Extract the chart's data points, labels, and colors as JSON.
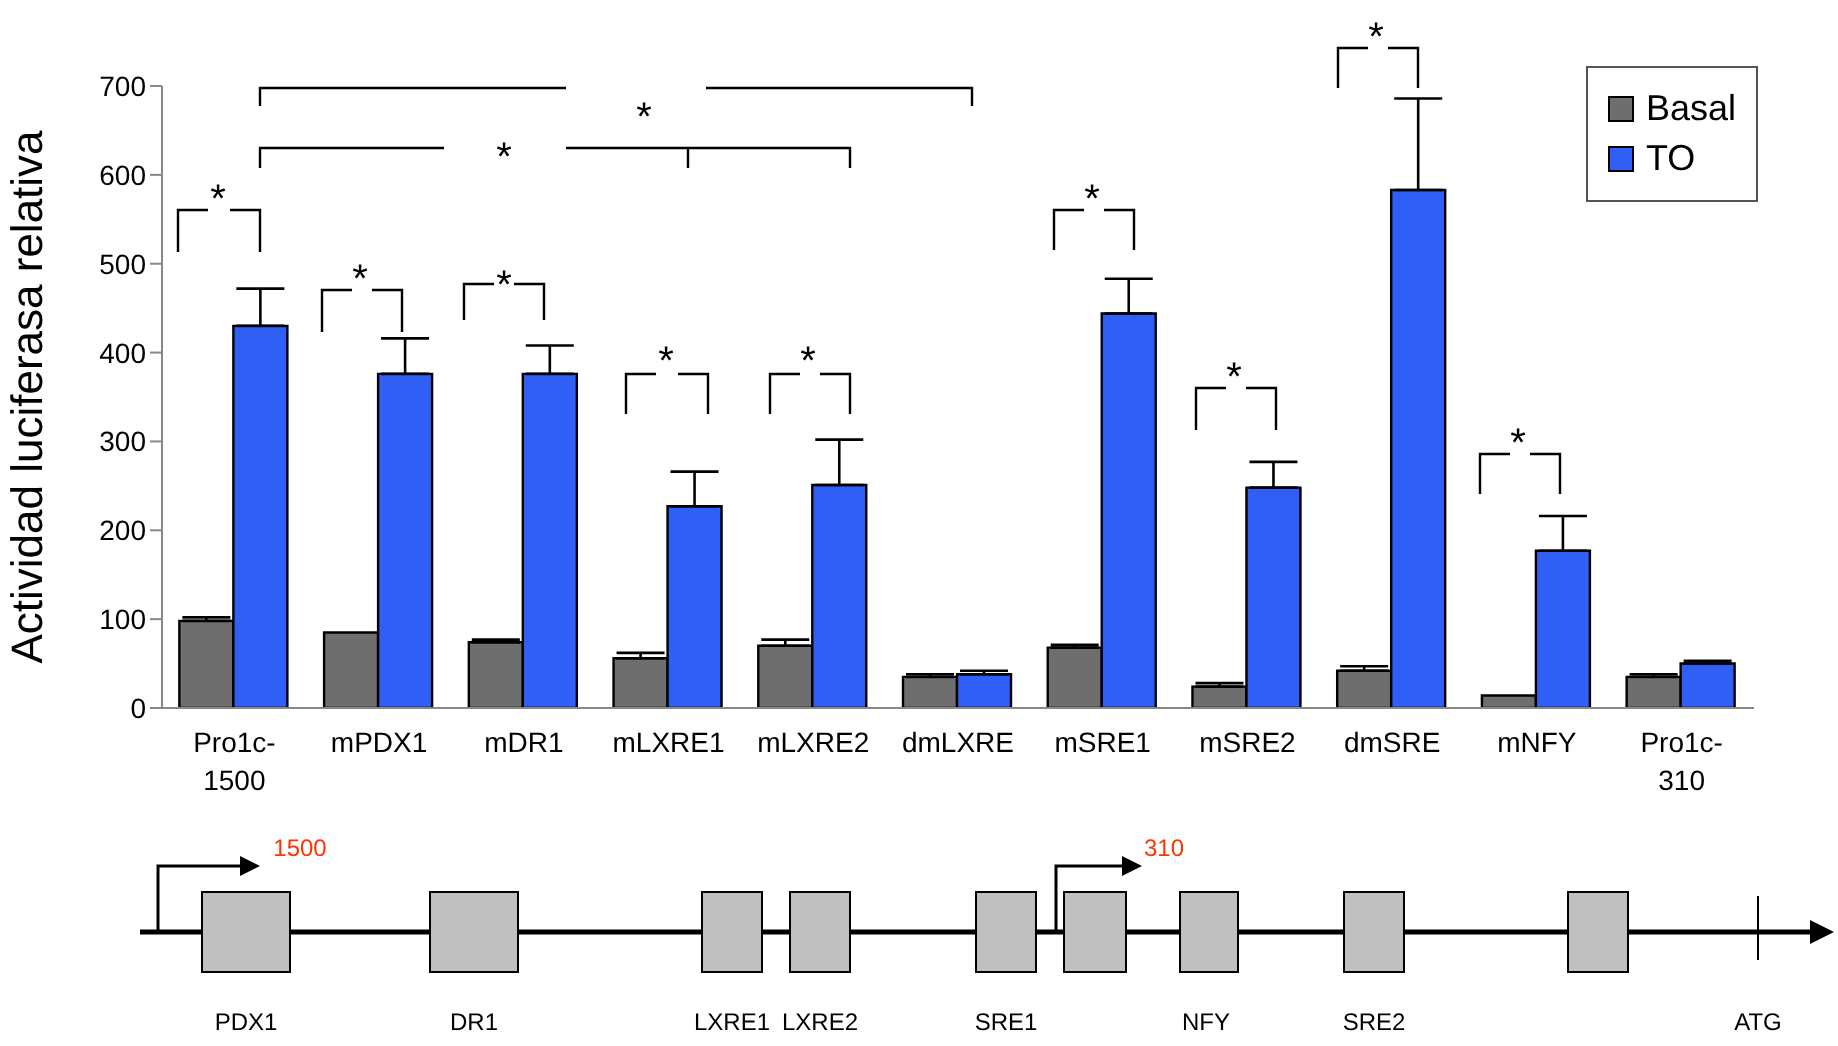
{
  "chart_data": {
    "type": "bar",
    "ylabel": "Actividad luciferasa relativa",
    "categories": [
      "Pro1c-1500",
      "mPDX1",
      "mDR1",
      "mLXRE1",
      "mLXRE2",
      "dmLXRE",
      "mSRE1",
      "mSRE2",
      "dmSRE",
      "mNFY",
      "Pro1c-310"
    ],
    "series": [
      {
        "name": "Basal",
        "color": "#6e6e6e",
        "values": [
          98,
          85,
          74,
          56,
          70,
          35,
          68,
          24,
          42,
          14,
          35
        ],
        "errors": [
          [
            98,
            102
          ],
          null,
          [
            74,
            77
          ],
          [
            56,
            62
          ],
          [
            70,
            77
          ],
          [
            35,
            38
          ],
          [
            68,
            71
          ],
          [
            24,
            28
          ],
          [
            42,
            47
          ],
          null,
          [
            35,
            38
          ]
        ]
      },
      {
        "name": "TO",
        "color": "#2f5ff5",
        "values": [
          430,
          376,
          376,
          227,
          251,
          38,
          444,
          248,
          583,
          177,
          50
        ],
        "errors": [
          [
            430,
            472
          ],
          [
            376,
            416
          ],
          [
            376,
            408
          ],
          [
            227,
            266
          ],
          [
            251,
            302
          ],
          [
            38,
            42
          ],
          [
            444,
            483
          ],
          [
            248,
            277
          ],
          [
            583,
            686
          ],
          [
            177,
            216
          ],
          [
            50,
            53
          ]
        ]
      }
    ],
    "ylim": [
      0,
      700
    ],
    "yticks": [
      0,
      100,
      200,
      300,
      400,
      500,
      600,
      700
    ],
    "grid": false,
    "legend": "top right",
    "annotations": [
      "*",
      "*",
      "*",
      "*",
      "*",
      "*",
      "*",
      "*",
      "*",
      "*",
      "*",
      "1500",
      "310",
      "PDX1",
      "DR1",
      "LXRE1",
      "LXRE2",
      "SRE1",
      "NFY",
      "SRE2",
      "ATG"
    ]
  }
}
